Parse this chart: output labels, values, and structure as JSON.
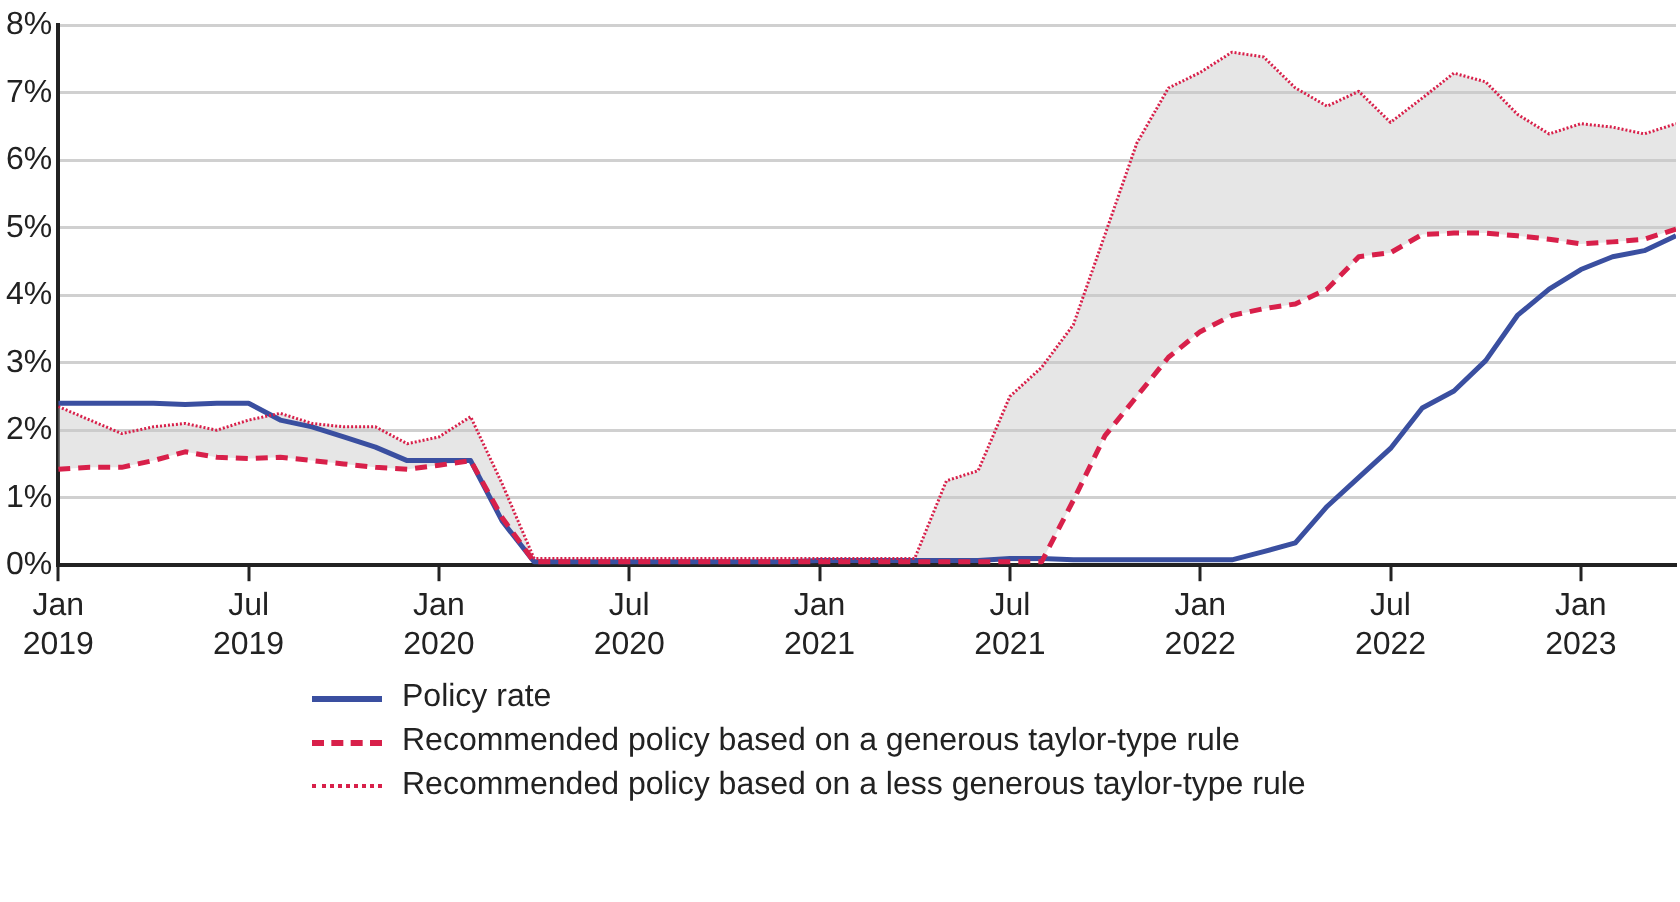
{
  "chart_data": {
    "type": "line",
    "x": [
      "2019-01",
      "2019-02",
      "2019-03",
      "2019-04",
      "2019-05",
      "2019-06",
      "2019-07",
      "2019-08",
      "2019-09",
      "2019-10",
      "2019-11",
      "2019-12",
      "2020-01",
      "2020-02",
      "2020-03",
      "2020-04",
      "2020-05",
      "2020-06",
      "2020-07",
      "2020-08",
      "2020-09",
      "2020-10",
      "2020-11",
      "2020-12",
      "2021-01",
      "2021-02",
      "2021-03",
      "2021-04",
      "2021-05",
      "2021-06",
      "2021-07",
      "2021-08",
      "2021-09",
      "2021-10",
      "2021-11",
      "2021-12",
      "2022-01",
      "2022-02",
      "2022-03",
      "2022-04",
      "2022-05",
      "2022-06",
      "2022-07",
      "2022-08",
      "2022-09",
      "2022-10",
      "2022-11",
      "2022-12",
      "2023-01",
      "2023-02",
      "2023-03",
      "2023-04"
    ],
    "series": [
      {
        "name": "Policy rate",
        "color": "#3a4fa0",
        "line_style": "solid",
        "values": [
          2.4,
          2.4,
          2.4,
          2.4,
          2.38,
          2.4,
          2.4,
          2.15,
          2.05,
          1.9,
          1.75,
          1.55,
          1.55,
          1.55,
          0.65,
          0.05,
          0.05,
          0.05,
          0.05,
          0.05,
          0.05,
          0.05,
          0.05,
          0.05,
          0.07,
          0.07,
          0.07,
          0.07,
          0.07,
          0.07,
          0.1,
          0.1,
          0.08,
          0.08,
          0.08,
          0.08,
          0.08,
          0.08,
          0.2,
          0.33,
          0.87,
          1.3,
          1.73,
          2.33,
          2.58,
          3.03,
          3.7,
          4.09,
          4.38,
          4.57,
          4.66,
          4.88
        ]
      },
      {
        "name": "Recommended policy based on a generous taylor-type rule",
        "color": "#d8204a",
        "line_style": "dashed",
        "values": [
          1.42,
          1.45,
          1.45,
          1.55,
          1.68,
          1.6,
          1.58,
          1.6,
          1.55,
          1.5,
          1.45,
          1.42,
          1.48,
          1.55,
          0.7,
          0.05,
          0.05,
          0.05,
          0.05,
          0.05,
          0.05,
          0.05,
          0.05,
          0.05,
          0.05,
          0.05,
          0.05,
          0.05,
          0.05,
          0.05,
          0.05,
          0.05,
          0.96,
          1.92,
          2.5,
          3.08,
          3.46,
          3.7,
          3.8,
          3.87,
          4.09,
          4.57,
          4.63,
          4.9,
          4.92,
          4.92,
          4.88,
          4.83,
          4.76,
          4.79,
          4.83,
          4.98
        ]
      },
      {
        "name": "Recommended policy based on a less generous taylor-type rule",
        "color": "#d8204a",
        "line_style": "dotted",
        "values": [
          2.35,
          2.15,
          1.95,
          2.05,
          2.1,
          2.0,
          2.15,
          2.25,
          2.1,
          2.05,
          2.05,
          1.8,
          1.9,
          2.2,
          1.2,
          0.1,
          0.1,
          0.1,
          0.1,
          0.1,
          0.1,
          0.1,
          0.1,
          0.1,
          0.1,
          0.1,
          0.1,
          0.1,
          1.25,
          1.4,
          2.5,
          2.93,
          3.56,
          4.9,
          6.25,
          7.07,
          7.3,
          7.6,
          7.53,
          7.07,
          6.8,
          7.02,
          6.56,
          6.92,
          7.29,
          7.16,
          6.68,
          6.39,
          6.54,
          6.49,
          6.39,
          6.54
        ],
        "lower": [
          1.42,
          1.45,
          1.45,
          1.55,
          1.68,
          1.6,
          1.58,
          1.6,
          1.55,
          1.5,
          1.45,
          1.42,
          1.48,
          1.55,
          0.7,
          0.05,
          0.05,
          0.05,
          0.05,
          0.05,
          0.05,
          0.05,
          0.05,
          0.05,
          0.05,
          0.05,
          0.05,
          0.05,
          0.05,
          0.05,
          0.05,
          0.05,
          0.96,
          1.92,
          2.5,
          3.08,
          3.46,
          3.7,
          3.8,
          3.87,
          4.09,
          4.57,
          4.63,
          4.9,
          4.92,
          4.92,
          4.88,
          4.83,
          4.76,
          4.79,
          4.83,
          4.98
        ],
        "upper": [
          2.35,
          2.15,
          1.95,
          2.05,
          2.1,
          2.0,
          2.15,
          2.25,
          2.1,
          2.05,
          2.05,
          1.8,
          1.9,
          2.2,
          1.2,
          0.1,
          0.1,
          0.1,
          0.1,
          0.1,
          0.1,
          0.1,
          0.1,
          0.1,
          0.1,
          0.1,
          0.1,
          0.1,
          1.25,
          1.4,
          2.5,
          2.93,
          3.56,
          4.9,
          6.25,
          7.07,
          7.3,
          7.6,
          7.53,
          7.07,
          6.8,
          7.02,
          6.56,
          6.92,
          7.29,
          7.16,
          6.68,
          6.39,
          6.54,
          6.49,
          6.39,
          6.54
        ]
      }
    ],
    "xlim": [
      "2019-01",
      "2023-04"
    ],
    "xticks": [
      {
        "value": "2019-01",
        "label": "Jan 2019"
      },
      {
        "value": "2019-07",
        "label": "Jul 2019"
      },
      {
        "value": "2020-01",
        "label": "Jan 2020"
      },
      {
        "value": "2020-07",
        "label": "Jul 2020"
      },
      {
        "value": "2021-01",
        "label": "Jan 2021"
      },
      {
        "value": "2021-07",
        "label": "Jul 2021"
      },
      {
        "value": "2022-01",
        "label": "Jan 2022"
      },
      {
        "value": "2022-07",
        "label": "Jul 2022"
      },
      {
        "value": "2023-01",
        "label": "Jan 2023"
      }
    ],
    "ylim": [
      0,
      8
    ],
    "yticks": [
      {
        "value": 0,
        "label": "0%"
      },
      {
        "value": 1,
        "label": "1%"
      },
      {
        "value": 2,
        "label": "2%"
      },
      {
        "value": 3,
        "label": "3%"
      },
      {
        "value": 4,
        "label": "4%"
      },
      {
        "value": 5,
        "label": "5%"
      },
      {
        "value": 6,
        "label": "6%"
      },
      {
        "value": 7,
        "label": "7%"
      },
      {
        "value": 8,
        "label": "8%"
      }
    ],
    "grid": "y",
    "legend": "bottom",
    "marker": "none"
  }
}
